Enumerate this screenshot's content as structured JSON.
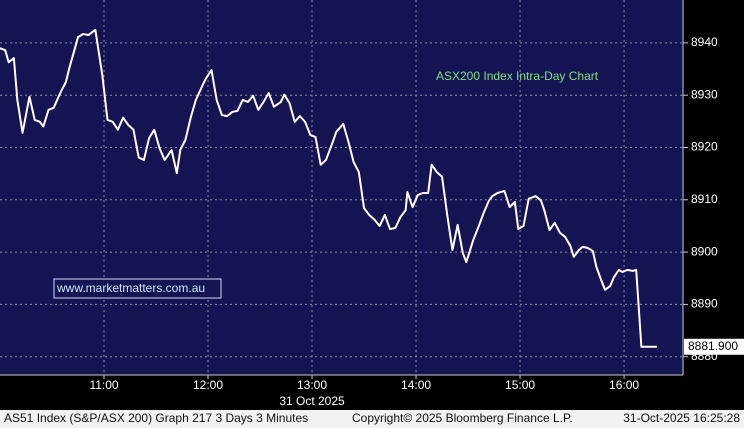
{
  "chart_data": {
    "type": "line",
    "annotation": "ASX200 Index Intra-Day Chart",
    "watermark": "www.marketmatters.com.au",
    "date_label": "31 Oct 2025",
    "footer": [
      "AS51 Index (S&P/ASX 200) Graph 217 3 Days 3 Minutes",
      "Copyright© 2025 Bloomberg Finance L.P.",
      "31-Oct-2025 16:25:28"
    ],
    "x": [
      600,
      603,
      605,
      608,
      610,
      613,
      617,
      620,
      623,
      625,
      628,
      631,
      635,
      638,
      640,
      643,
      645,
      648,
      651,
      655,
      659,
      662,
      665,
      668,
      671,
      674,
      677,
      680,
      683,
      686,
      689,
      692,
      695,
      699,
      702,
      704,
      707,
      710,
      713,
      717,
      719,
      722,
      725,
      728,
      731,
      734,
      737,
      740,
      743,
      746,
      749,
      752,
      755,
      758,
      762,
      764,
      767,
      770,
      773,
      776,
      779,
      782,
      785,
      788,
      792,
      794,
      798,
      801,
      804,
      807,
      810,
      813,
      816,
      819,
      822,
      825,
      828,
      831,
      834,
      835,
      838,
      841,
      844,
      847,
      849,
      852,
      855,
      858,
      861,
      864,
      867,
      869,
      873,
      876,
      879,
      882,
      884,
      887,
      891,
      894,
      897,
      899,
      902,
      905,
      909,
      912,
      914,
      917,
      920,
      923,
      926,
      929,
      931,
      934,
      936,
      939,
      942,
      944,
      947,
      949,
      952,
      954,
      957,
      959,
      962,
      965,
      967,
      970,
      979
    ],
    "series": [
      {
        "name": "AS51 Index",
        "color": "#ffffff",
        "values": [
          8939.0,
          8938.6,
          8936.3,
          8937.1,
          8929.1,
          8922.8,
          8929.7,
          8925.3,
          8924.9,
          8924.0,
          8927.2,
          8927.6,
          8930.6,
          8932.5,
          8935.2,
          8938.7,
          8941.1,
          8941.7,
          8941.5,
          8942.5,
          8933.9,
          8925.3,
          8924.9,
          8923.4,
          8925.7,
          8924.3,
          8923.4,
          8918.1,
          8917.6,
          8921.8,
          8923.4,
          8919.9,
          8917.6,
          8919.5,
          8915.1,
          8919.5,
          8921.5,
          8925.7,
          8929.1,
          8932.0,
          8933.3,
          8934.8,
          8929.1,
          8926.2,
          8926.0,
          8926.8,
          8927.0,
          8929.1,
          8928.7,
          8929.9,
          8927.2,
          8928.7,
          8930.4,
          8927.8,
          8928.7,
          8930.1,
          8928.5,
          8924.9,
          8926.0,
          8924.9,
          8922.4,
          8922.0,
          8916.7,
          8917.6,
          8921.1,
          8923.0,
          8924.5,
          8921.1,
          8917.2,
          8915.3,
          8908.4,
          8907.1,
          8906.2,
          8905.0,
          8907.1,
          8904.4,
          8904.6,
          8906.7,
          8908.0,
          8911.5,
          8908.6,
          8910.9,
          8911.3,
          8911.3,
          8916.7,
          8915.3,
          8914.4,
          8907.1,
          8900.4,
          8905.2,
          8899.8,
          8898.1,
          8902.3,
          8904.8,
          8907.5,
          8909.8,
          8910.7,
          8911.3,
          8911.7,
          8908.6,
          8909.6,
          8904.4,
          8905.0,
          8910.2,
          8910.7,
          8909.9,
          8908.0,
          8904.2,
          8905.6,
          8903.7,
          8902.9,
          8901.2,
          8899.1,
          8900.4,
          8901.0,
          8900.8,
          8900.2,
          8897.2,
          8894.5,
          8892.8,
          8893.5,
          8895.1,
          8896.6,
          8896.2,
          8896.6,
          8896.4,
          8896.6,
          8881.9,
          8881.9
        ]
      }
    ],
    "last_value": {
      "value": 8881.9,
      "label": "8881.900"
    },
    "xlim": [
      600,
      994
    ],
    "xticks": [
      {
        "value": 660,
        "label": "11:00"
      },
      {
        "value": 720,
        "label": "12:00"
      },
      {
        "value": 780,
        "label": "13:00"
      },
      {
        "value": 840,
        "label": "14:00"
      },
      {
        "value": 900,
        "label": "15:00"
      },
      {
        "value": 960,
        "label": "16:00"
      }
    ],
    "ylim": [
      8876.5,
      8948.2
    ],
    "yticks": [
      8880,
      8890,
      8900,
      8910,
      8920,
      8930,
      8940
    ],
    "grid": true
  }
}
